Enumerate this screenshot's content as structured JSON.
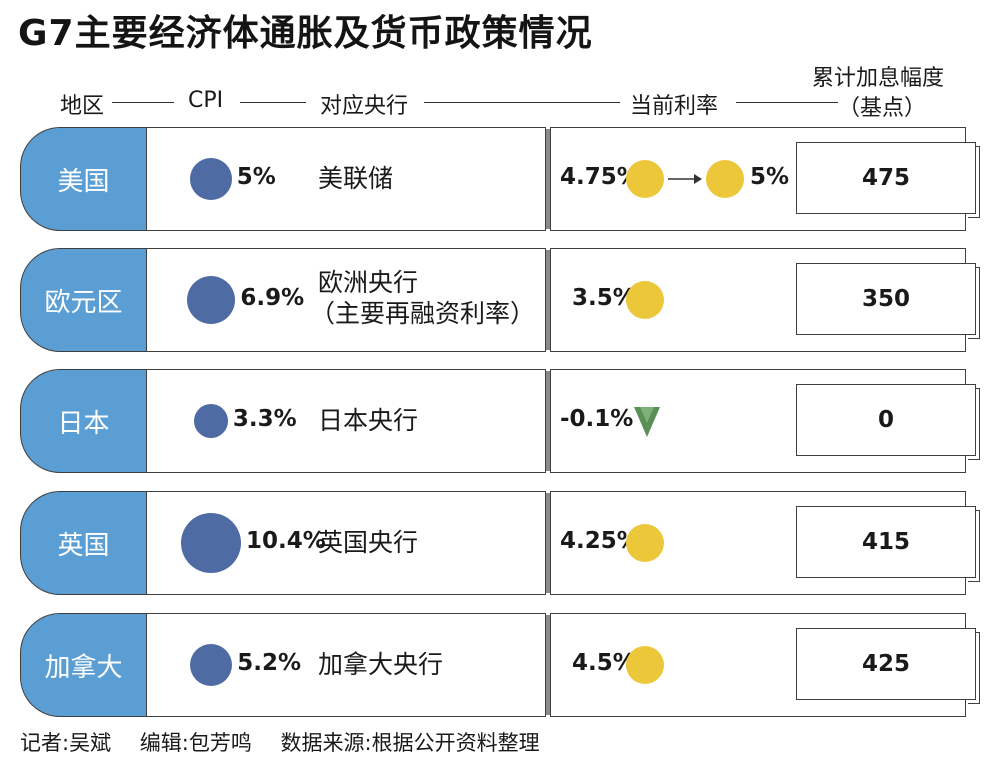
{
  "title": "G7主要经济体通胀及货币政策情况",
  "headers": {
    "region": "地区",
    "cpi": "CPI",
    "bank": "对应央行",
    "rate": "当前利率",
    "hike_line1": "累计加息幅度",
    "hike_line2": "（基点）"
  },
  "colors": {
    "region_tab": "#5b9ed3",
    "cpi_dot": "#4f6ba3",
    "rate_dot": "#ecc73a",
    "down_arrow": "#5a8f56"
  },
  "chart_data": {
    "type": "table",
    "rows": [
      {
        "region": "美国",
        "cpi": 5,
        "cpi_label": "5%",
        "bank": [
          "美联储"
        ],
        "rate_from_label": "4.75%",
        "rate_label": "5%",
        "rate_change": "up",
        "hike_bp": "475"
      },
      {
        "region": "欧元区",
        "cpi": 6.9,
        "cpi_label": "6.9%",
        "bank": [
          "欧洲央行",
          "（主要再融资利率）"
        ],
        "rate_label": "3.5%",
        "hike_bp": "350"
      },
      {
        "region": "日本",
        "cpi": 3.3,
        "cpi_label": "3.3%",
        "bank": [
          "日本央行"
        ],
        "rate_label": "-0.1%",
        "rate_change": "down",
        "hike_bp": "0"
      },
      {
        "region": "英国",
        "cpi": 10.4,
        "cpi_label": "10.4%",
        "bank": [
          "英国央行"
        ],
        "rate_label": "4.25%",
        "hike_bp": "415"
      },
      {
        "region": "加拿大",
        "cpi": 5.2,
        "cpi_label": "5.2%",
        "bank": [
          "加拿大央行"
        ],
        "rate_label": "4.5%",
        "hike_bp": "425"
      }
    ]
  },
  "footer": {
    "reporter": "记者:吴斌",
    "editor": "编辑:包芳鸣",
    "source": "数据来源:根据公开资料整理"
  }
}
